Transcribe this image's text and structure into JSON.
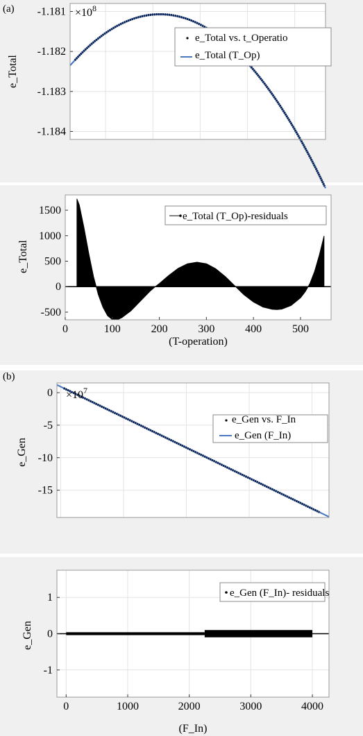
{
  "panel_labels": {
    "a": "(a)",
    "b": "(b)"
  },
  "chart_data": [
    {
      "id": "a-fit",
      "type": "scatter",
      "ylabel": "e_Total",
      "xlabel": "",
      "exponent": "×10",
      "exponent_power": "8",
      "xlim": [
        25,
        565
      ],
      "ylim": [
        -1.1842,
        -1.1808
      ],
      "yticks": [
        -1.181,
        -1.182,
        -1.183,
        -1.184
      ],
      "ytick_labels": [
        "-1.181",
        "-1.182",
        "-1.183",
        "-1.184"
      ],
      "grid": true,
      "legend": [
        "e_Total vs. t_Operatio",
        "e_Total (T_Op)"
      ],
      "legend_position": "top-right",
      "colors": {
        "points": "#0b1f4a",
        "fit": "#4a78c0"
      },
      "quad": {
        "vertex_x": 215,
        "vertex_y": -1.18107,
        "k": -3.55e-08
      }
    },
    {
      "id": "a-res",
      "type": "area",
      "ylabel": "e_Total",
      "xlabel": "(T-operation)",
      "xlim": [
        0,
        565
      ],
      "ylim": [
        -650,
        1800
      ],
      "xticks": [
        0,
        100,
        200,
        300,
        400,
        500
      ],
      "xtick_labels": [
        "0",
        "100",
        "200",
        "300",
        "400",
        "500"
      ],
      "yticks": [
        1500,
        1000,
        500,
        0,
        -500
      ],
      "ytick_labels": [
        "1500",
        "1000",
        "500",
        "0",
        "-500"
      ],
      "grid": false,
      "legend": [
        "e_Total (T_Op)-residuals"
      ],
      "legend_position": "top-right",
      "x": [
        25,
        30,
        40,
        50,
        60,
        70,
        80,
        90,
        100,
        110,
        120,
        140,
        160,
        180,
        190,
        200,
        220,
        240,
        260,
        280,
        300,
        320,
        340,
        360,
        380,
        400,
        420,
        440,
        450,
        460,
        480,
        500,
        510,
        520,
        530,
        540,
        550
      ],
      "y": [
        1720,
        1600,
        1150,
        650,
        200,
        -150,
        -400,
        -570,
        -645,
        -650,
        -610,
        -470,
        -280,
        -90,
        -10,
        60,
        220,
        360,
        450,
        480,
        450,
        350,
        200,
        20,
        -160,
        -300,
        -400,
        -445,
        -450,
        -440,
        -370,
        -220,
        -100,
        60,
        300,
        620,
        990
      ]
    },
    {
      "id": "b-fit",
      "type": "scatter",
      "ylabel": "e_Gen",
      "xlabel": "",
      "exponent": "×10",
      "exponent_power": "7",
      "xlim": [
        -60,
        4270
      ],
      "ylim": [
        -19.2,
        1.5
      ],
      "yticks": [
        0,
        -5,
        -10,
        -15
      ],
      "ytick_labels": [
        "0",
        "-5",
        "-10",
        "-15"
      ],
      "grid": true,
      "legend": [
        "e_Gen vs. F_In",
        "e_Gen (F_In)"
      ],
      "legend_position": "top-right",
      "colors": {
        "points": "#0b1f4a",
        "fit": "#4a78c0"
      },
      "line": {
        "x": [
          -60,
          4270
        ],
        "y": [
          1.2,
          -19.1
        ]
      }
    },
    {
      "id": "b-res",
      "type": "scatter",
      "ylabel": "e_Gen",
      "xlabel": "(F_In)",
      "xlim": [
        -150,
        4270
      ],
      "ylim": [
        -1.75,
        1.75
      ],
      "xticks": [
        0,
        1000,
        2000,
        3000,
        4000
      ],
      "xtick_labels": [
        "0",
        "1000",
        "2000",
        "3000",
        "4000"
      ],
      "yticks": [
        1,
        0,
        -1
      ],
      "ytick_labels": [
        "1",
        "0",
        "-1"
      ],
      "grid": true,
      "legend": [
        "e_Gen (F_In)- residuals"
      ],
      "legend_position": "top-right",
      "bands": [
        {
          "x": [
            0,
            2250
          ],
          "half": 0.04
        },
        {
          "x": [
            2250,
            4000
          ],
          "half": 0.1
        }
      ]
    }
  ]
}
